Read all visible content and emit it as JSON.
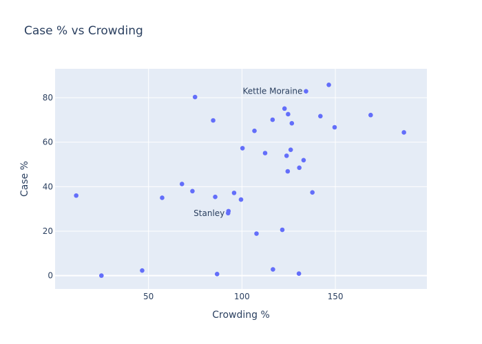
{
  "chart_data": {
    "type": "scatter",
    "title": "Case % vs Crowding",
    "xlabel": "Crowding %",
    "ylabel": "Case %",
    "xlim": [
      0,
      199
    ],
    "ylim": [
      -6,
      93
    ],
    "x_ticks": [
      50,
      100,
      150
    ],
    "y_ticks": [
      0,
      20,
      40,
      60,
      80
    ],
    "grid": true,
    "marker_color": "#636efa",
    "plot_bg": "#e5ecf6",
    "points": [
      {
        "x": 11.3,
        "y": 36.0
      },
      {
        "x": 24.8,
        "y": 0.0
      },
      {
        "x": 46.6,
        "y": 2.3
      },
      {
        "x": 57.3,
        "y": 35.0
      },
      {
        "x": 67.9,
        "y": 41.2
      },
      {
        "x": 73.5,
        "y": 38.0
      },
      {
        "x": 74.9,
        "y": 80.3
      },
      {
        "x": 84.6,
        "y": 69.8
      },
      {
        "x": 85.7,
        "y": 35.4
      },
      {
        "x": 86.7,
        "y": 0.7
      },
      {
        "x": 92.6,
        "y": 28.1
      },
      {
        "x": 92.8,
        "y": 29.0
      },
      {
        "x": 95.8,
        "y": 37.2
      },
      {
        "x": 99.5,
        "y": 34.2
      },
      {
        "x": 100.3,
        "y": 57.3
      },
      {
        "x": 106.7,
        "y": 65.1
      },
      {
        "x": 107.8,
        "y": 18.9
      },
      {
        "x": 112.4,
        "y": 55.1
      },
      {
        "x": 116.4,
        "y": 70.1
      },
      {
        "x": 116.6,
        "y": 2.8
      },
      {
        "x": 121.6,
        "y": 20.6
      },
      {
        "x": 122.8,
        "y": 75.1
      },
      {
        "x": 123.9,
        "y": 53.9
      },
      {
        "x": 124.5,
        "y": 46.9
      },
      {
        "x": 124.7,
        "y": 72.6
      },
      {
        "x": 126.1,
        "y": 56.6
      },
      {
        "x": 126.7,
        "y": 68.5
      },
      {
        "x": 130.5,
        "y": 0.9
      },
      {
        "x": 130.7,
        "y": 48.5
      },
      {
        "x": 133.0,
        "y": 51.9
      },
      {
        "x": 134.3,
        "y": 82.9
      },
      {
        "x": 137.7,
        "y": 37.4
      },
      {
        "x": 142.0,
        "y": 71.7
      },
      {
        "x": 146.5,
        "y": 85.8
      },
      {
        "x": 149.6,
        "y": 66.7
      },
      {
        "x": 168.9,
        "y": 72.2
      },
      {
        "x": 186.7,
        "y": 64.4
      }
    ],
    "annotations": [
      {
        "text": "Kettle Moraine",
        "x": 134.3,
        "y": 82.9
      },
      {
        "text": "Stanley",
        "x": 92.6,
        "y": 28.1
      }
    ]
  }
}
